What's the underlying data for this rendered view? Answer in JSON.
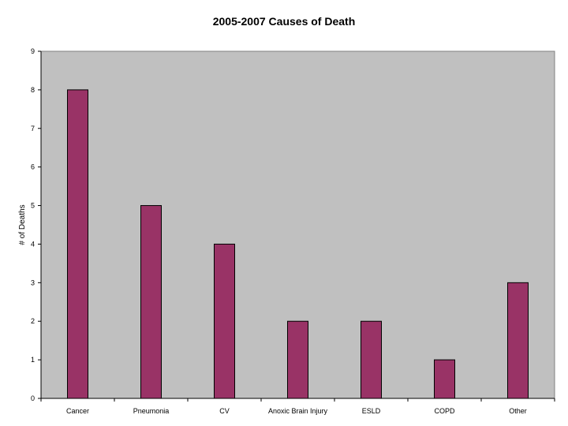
{
  "chart_data": {
    "type": "bar",
    "title": "2005-2007 Causes of Death",
    "xlabel": "",
    "ylabel": "# of Deaths",
    "categories": [
      "Cancer",
      "Pneumonia",
      "CV",
      "Anoxic Brain Injury",
      "ESLD",
      "COPD",
      "Other"
    ],
    "values": [
      8,
      5,
      4,
      2,
      2,
      1,
      3
    ],
    "ylim": [
      0,
      9
    ],
    "yticks": [
      "0",
      "1",
      "2",
      "3",
      "4",
      "5",
      "6",
      "7",
      "8",
      "9"
    ],
    "grid": false,
    "legend": "none",
    "colors": {
      "bar_fill": "#993366",
      "bar_stroke": "#000000",
      "plot_background": "#c0c0c0",
      "plot_border": "#808080"
    }
  }
}
